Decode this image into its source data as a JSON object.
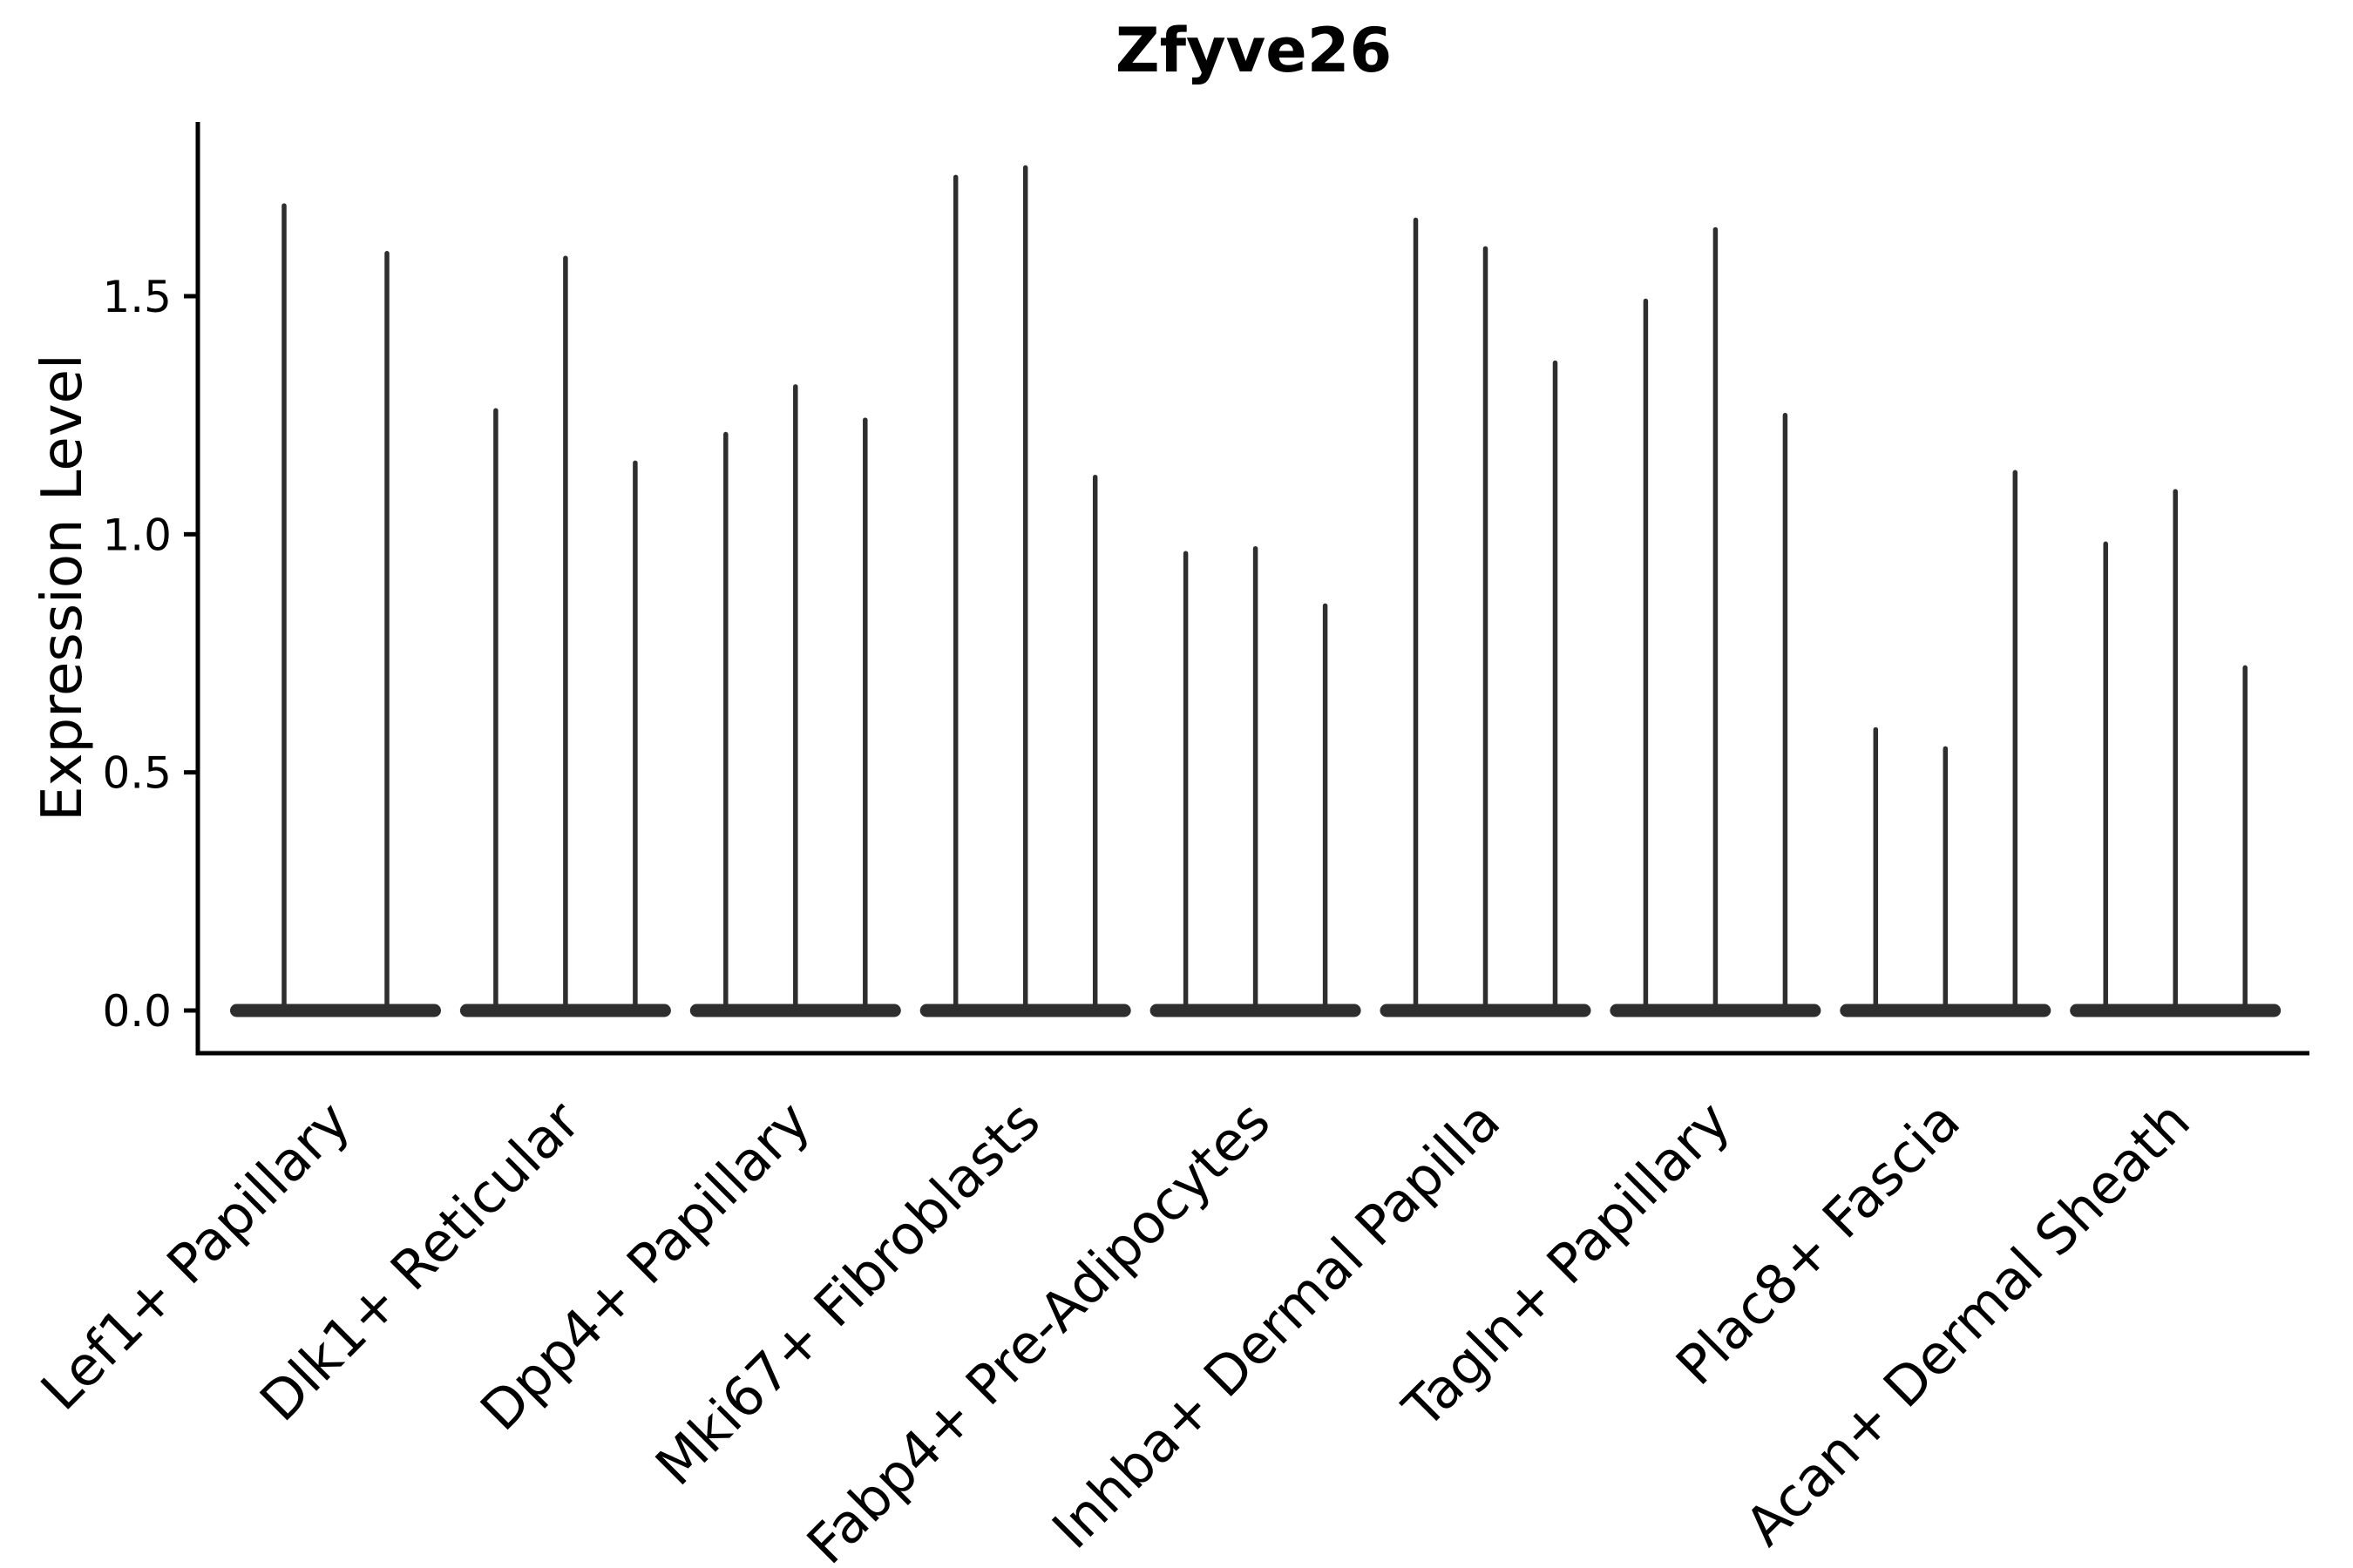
{
  "chart_data": {
    "type": "violin",
    "title": "Zfyve26",
    "ylabel": "Expression Level",
    "xlabel": "",
    "grid": false,
    "legend": null,
    "ylim": [
      -0.09,
      1.87
    ],
    "ytick_labels": [
      "0.0",
      "0.5",
      "1.0",
      "1.5"
    ],
    "ytick_values": [
      0.0,
      0.5,
      1.0,
      1.5
    ],
    "categories": [
      "Lef1+ Papillary",
      "Dlk1+ Reticular",
      "Dpp4+ Papillary",
      "Mki67+ Fibroblasts",
      "Fabp4+ Pre-Adipocytes",
      "Inhba+ Dermal Papilla",
      "Tagln+ Papillary",
      "Plac8+ Fascia",
      "Acan+ Dermal Sheath"
    ],
    "violin_note": "Each category shows thin violins; bulk of density sits at 0 (flat base plate), with a narrow spike reaching the listed maximum expression value.",
    "violins": [
      {
        "category": "Lef1+ Papillary",
        "spike_maxima": [
          1.69,
          1.59
        ]
      },
      {
        "category": "Dlk1+ Reticular",
        "spike_maxima": [
          1.26,
          1.58,
          1.15
        ]
      },
      {
        "category": "Dpp4+ Papillary",
        "spike_maxima": [
          1.21,
          1.31,
          1.24
        ]
      },
      {
        "category": "Mki67+ Fibroblasts",
        "spike_maxima": [
          1.75,
          1.77,
          1.12
        ]
      },
      {
        "category": "Fabp4+ Pre-Adipocytes",
        "spike_maxima": [
          0.96,
          0.97,
          0.85
        ]
      },
      {
        "category": "Inhba+ Dermal Papilla",
        "spike_maxima": [
          1.66,
          1.6,
          1.36
        ]
      },
      {
        "category": "Tagln+ Papillary",
        "spike_maxima": [
          1.49,
          1.64,
          1.25
        ]
      },
      {
        "category": "Plac8+ Fascia",
        "spike_maxima": [
          0.59,
          0.55,
          1.13
        ]
      },
      {
        "category": "Acan+ Dermal Sheath",
        "spike_maxima": [
          0.98,
          1.09,
          0.72
        ]
      }
    ],
    "colors": {
      "ink": "#000000",
      "violin": "#2e2e2e",
      "background": "#ffffff"
    }
  }
}
